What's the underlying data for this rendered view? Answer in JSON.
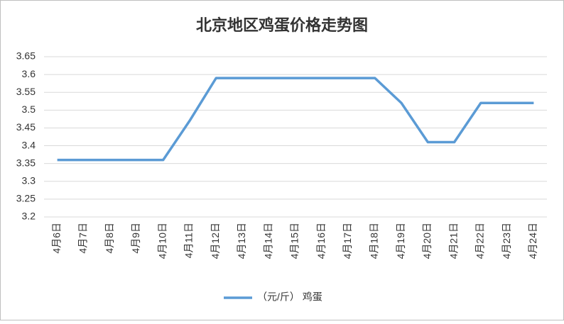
{
  "chart_data": {
    "type": "line",
    "title": "北京地区鸡蛋价格走势图",
    "categories": [
      "4月6日",
      "4月7日",
      "4月8日",
      "4月9日",
      "4月10日",
      "4月11日",
      "4月12日",
      "4月13日",
      "4月14日",
      "4月15日",
      "4月16日",
      "4月17日",
      "4月18日",
      "4月19日",
      "4月20日",
      "4月21日",
      "4月22日",
      "4月23日",
      "4月24日"
    ],
    "series": [
      {
        "name": "（元/斤） 鸡蛋",
        "color": "#5b9bd5",
        "values": [
          3.36,
          3.36,
          3.36,
          3.36,
          3.36,
          3.47,
          3.59,
          3.59,
          3.59,
          3.59,
          3.59,
          3.59,
          3.59,
          3.52,
          3.41,
          3.41,
          3.52,
          3.52,
          3.52
        ]
      }
    ],
    "ylim": [
      3.2,
      3.65
    ],
    "yticks": [
      3.2,
      3.25,
      3.3,
      3.35,
      3.4,
      3.45,
      3.5,
      3.55,
      3.6,
      3.65
    ],
    "grid": true,
    "legend": "bottom"
  }
}
